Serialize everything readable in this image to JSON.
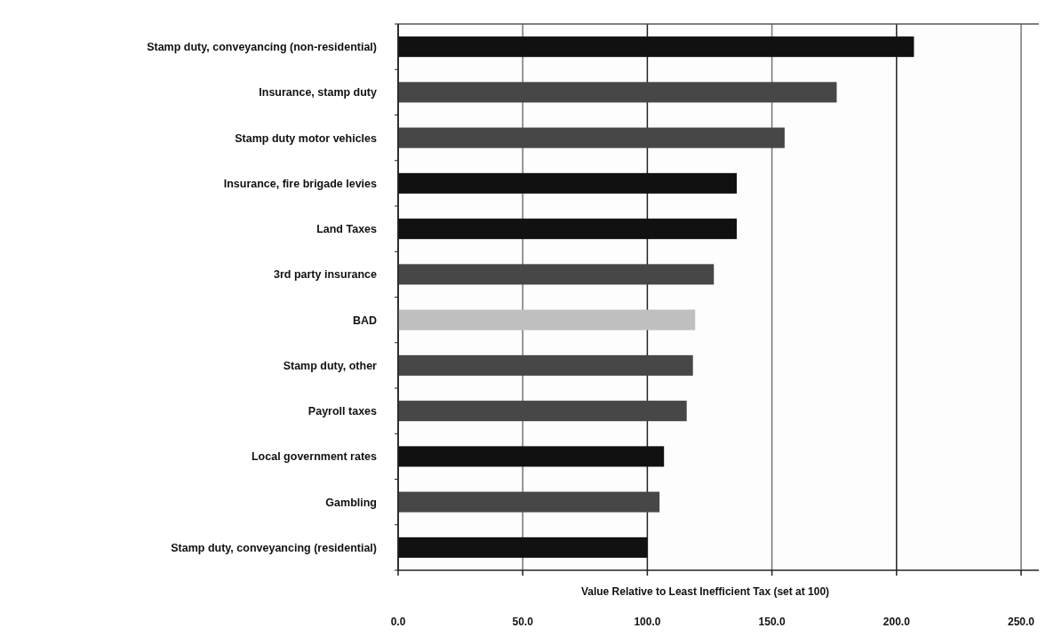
{
  "chart_data": {
    "type": "bar",
    "orientation": "horizontal",
    "xlabel": "Value Relative to Least Inefficient Tax (set at 100)",
    "categories": [
      "Stamp duty, conveyancing (non-residential)",
      "Insurance, stamp duty",
      "Stamp duty motor vehicles",
      "Insurance, fire brigade levies",
      "Land Taxes",
      "3rd party insurance",
      "BAD",
      "Stamp duty, other",
      "Payroll taxes",
      "Local government rates",
      "Gambling",
      "Stamp duty, conveyancing (residential)"
    ],
    "values": [
      207.0,
      176.0,
      155.1,
      135.9,
      135.9,
      126.7,
      119.2,
      118.3,
      115.8,
      106.7,
      104.9,
      100.0
    ],
    "colors": [
      "#111111",
      "#474747",
      "#474747",
      "#111111",
      "#111111",
      "#474747",
      "#bfbfbf",
      "#474747",
      "#474747",
      "#111111",
      "#474747",
      "#111111"
    ],
    "xlim": [
      0,
      250
    ],
    "xticks": [
      {
        "value": 0,
        "label": "0.0"
      },
      {
        "value": 50,
        "label": "50.0"
      },
      {
        "value": 100,
        "label": "100.0"
      },
      {
        "value": 150,
        "label": "150.0"
      },
      {
        "value": 200,
        "label": "200.0"
      },
      {
        "value": 250,
        "label": "250.0"
      }
    ],
    "grid": "x"
  }
}
